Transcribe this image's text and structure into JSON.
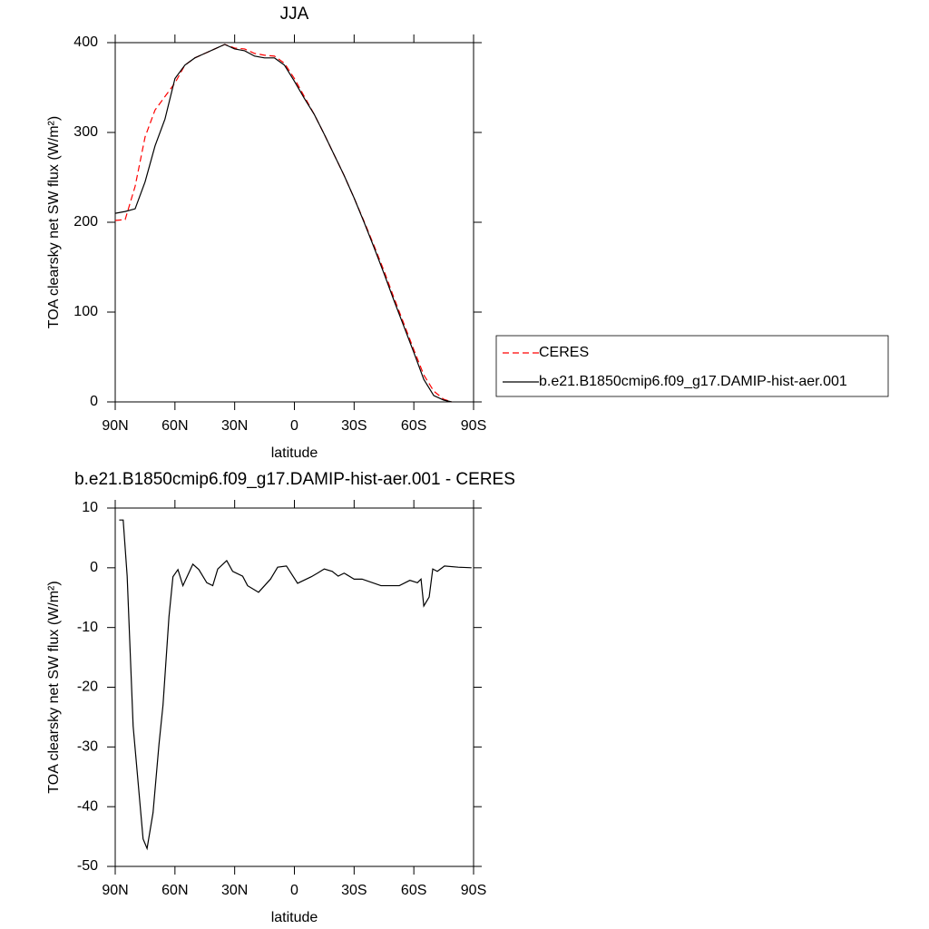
{
  "chart_data": [
    {
      "type": "line",
      "title": "JJA",
      "xlabel": "latitude",
      "ylabel": "TOA clearsky net SW flux (W/m²)",
      "x": [
        90,
        85,
        80,
        75,
        70,
        65,
        60,
        55,
        50,
        45,
        40,
        35,
        30,
        25,
        20,
        15,
        10,
        5,
        0,
        -5,
        -10,
        -15,
        -20,
        -25,
        -30,
        -35,
        -40,
        -45,
        -50,
        -55,
        -60,
        -65,
        -70,
        -75,
        -79
      ],
      "series": [
        {
          "name": "CERES",
          "color": "#ff0000",
          "dashed": true,
          "values": [
            202,
            203,
            240,
            295,
            325,
            340,
            355,
            375,
            383,
            388,
            393,
            398,
            394,
            393,
            388,
            386,
            385,
            377,
            360,
            340,
            320,
            298,
            275,
            252,
            227,
            201,
            174,
            146,
            116,
            87,
            58,
            30,
            12,
            3,
            0
          ]
        },
        {
          "name": "b.e21.B1850cmip6.f09_g17.DAMIP-hist-aer.001",
          "color": "#000000",
          "dashed": false,
          "values": [
            210,
            212,
            215,
            245,
            285,
            315,
            360,
            375,
            383,
            388,
            393,
            398,
            393,
            391,
            385,
            383,
            383,
            375,
            357,
            338,
            320,
            298,
            275,
            252,
            227,
            200,
            172,
            143,
            113,
            84,
            55,
            25,
            7,
            2,
            0
          ]
        }
      ],
      "xlim": [
        90,
        -90
      ],
      "xticks": [
        {
          "value": 90,
          "label": "90N"
        },
        {
          "value": 60,
          "label": "60N"
        },
        {
          "value": 30,
          "label": "30N"
        },
        0,
        {
          "value": -30,
          "label": "30S"
        },
        {
          "value": -60,
          "label": "60S"
        },
        {
          "value": -90,
          "label": "90S"
        }
      ],
      "ylim": [
        0,
        400
      ],
      "yticks": [
        0,
        100,
        200,
        300,
        400
      ]
    },
    {
      "type": "line",
      "title": "b.e21.B1850cmip6.f09_g17.DAMIP-hist-aer.001 - CERES",
      "xlabel": "latitude",
      "ylabel": "TOA clearsky net SW flux (W/m²)",
      "x": [
        88,
        86,
        84,
        81,
        76,
        74,
        71,
        68,
        66,
        63,
        61,
        58.5,
        56,
        51,
        48,
        44,
        41,
        38.5,
        34,
        31,
        26,
        23.5,
        18,
        12,
        8.4,
        4,
        -1.6,
        -8.5,
        -11.6,
        -15,
        -19,
        -22,
        -25,
        -30,
        -34,
        -43.5,
        -52.7,
        -58,
        -61.8,
        -63.6,
        -65,
        -67.7,
        -69.5,
        -71.8,
        -75.4,
        -82.3,
        -89
      ],
      "values": [
        8,
        8,
        -1.4,
        -26.5,
        -45.4,
        -47,
        -41,
        -29.5,
        -23,
        -8.2,
        -1.5,
        -0.3,
        -3,
        0.6,
        -0.3,
        -2.5,
        -3,
        -0.2,
        1.2,
        -0.6,
        -1.4,
        -3,
        -4.1,
        -1.9,
        0.1,
        0.3,
        -2.6,
        -1.5,
        -0.9,
        -0.2,
        -0.6,
        -1.4,
        -0.9,
        -1.9,
        -1.9,
        -3,
        -3,
        -2.1,
        -2.5,
        -1.9,
        -6.4,
        -4.9,
        -0.2,
        -0.6,
        0.3,
        0.1,
        0
      ],
      "color": "#000000",
      "xlim": [
        90,
        -90
      ],
      "xticks": [
        {
          "value": 90,
          "label": "90N"
        },
        {
          "value": 60,
          "label": "60N"
        },
        {
          "value": 30,
          "label": "30N"
        },
        0,
        {
          "value": -30,
          "label": "30S"
        },
        {
          "value": -60,
          "label": "60S"
        },
        {
          "value": -90,
          "label": "90S"
        }
      ],
      "ylim": [
        -50,
        10
      ],
      "yticks": [
        -50,
        -40,
        -30,
        -20,
        -10,
        0,
        10
      ]
    }
  ]
}
